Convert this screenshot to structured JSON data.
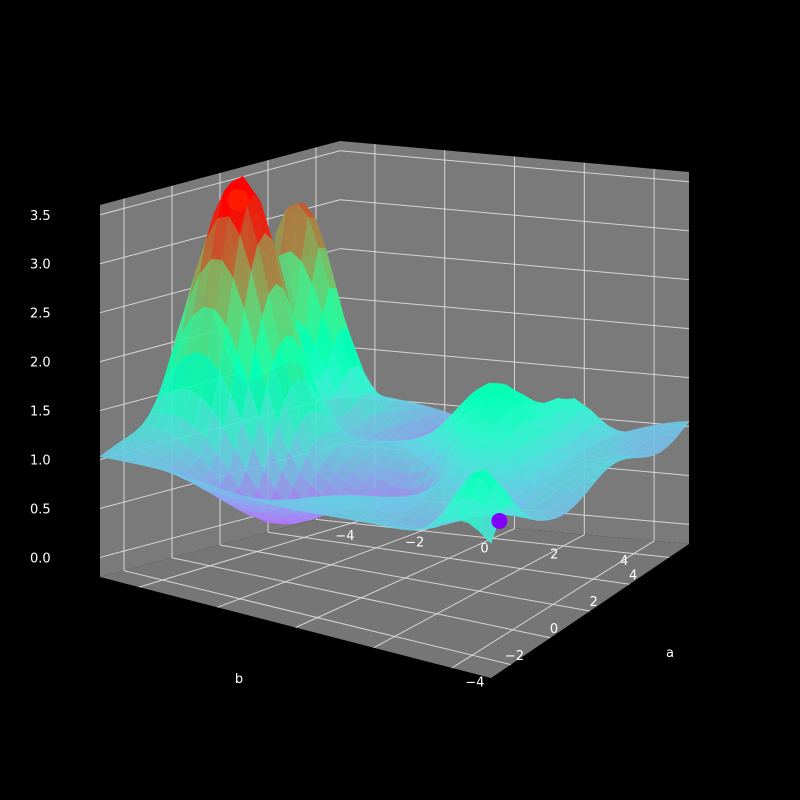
{
  "chart_data": {
    "type": "surface3d",
    "title": "",
    "xlabel": "b",
    "ylabel": "a",
    "zlabel": "",
    "xlim": [
      -5,
      5
    ],
    "ylim": [
      -5,
      5
    ],
    "zlim": [
      -0.2,
      3.6
    ],
    "x_ticks": [
      "−4",
      "−2",
      "0",
      "2",
      "4"
    ],
    "y_ticks": [
      "−4",
      "−2",
      "0",
      "2",
      "4"
    ],
    "z_ticks": [
      "0.0",
      "0.5",
      "1.0",
      "1.5",
      "2.0",
      "2.5",
      "3.0",
      "3.5"
    ],
    "colormap": "rainbow",
    "background": "#000000",
    "pane_color": "#7a7a7a",
    "grid": true,
    "peaks": [
      {
        "b": -1.0,
        "a": -4.0,
        "z": 3.5
      },
      {
        "b": 2.5,
        "a": -4.5,
        "z": 3.2
      },
      {
        "b": 1.0,
        "a": 2.0,
        "z": 2.0
      }
    ],
    "minimum_marker": {
      "b": 3.5,
      "a": 0.5,
      "z": 0.05
    },
    "maximum_marker": {
      "b": -0.8,
      "a": -4.0,
      "z": 3.45
    }
  }
}
